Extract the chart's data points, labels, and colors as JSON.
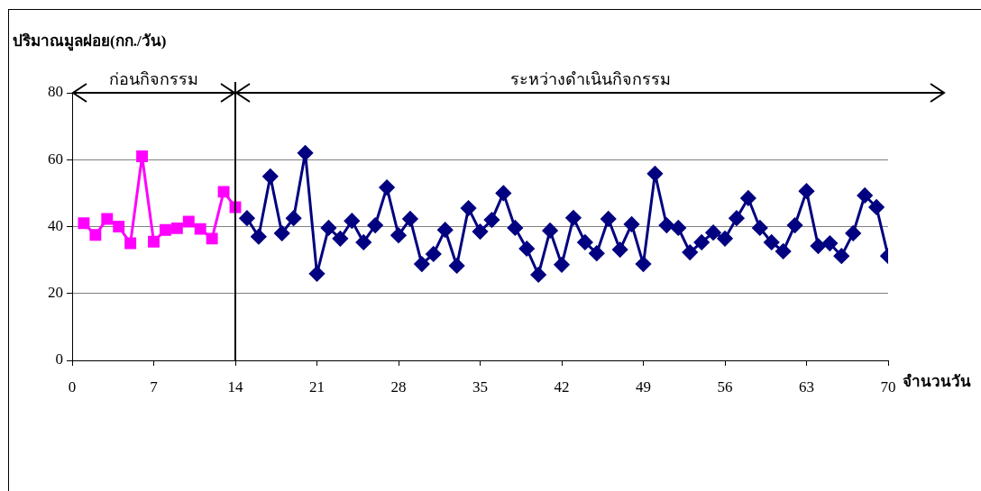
{
  "chart_data": {
    "type": "line",
    "ylabel": "ปริมาณมูลฝอย(กก./วัน)",
    "xlabel": "จำนวนวัน",
    "annotations": [
      "ก่อนกิจกรรม",
      "ระหว่างดำเนินกิจกรรม"
    ],
    "xlim": [
      0,
      70
    ],
    "xticks": [
      0,
      7,
      14,
      21,
      28,
      35,
      42,
      49,
      56,
      63,
      70
    ],
    "ylim": [
      0,
      80
    ],
    "yticks": [
      0,
      20,
      40,
      60,
      80
    ],
    "grid": "y",
    "legend": false,
    "marker": "diamond",
    "ref_lines": [
      {
        "axis": "x",
        "value": 14,
        "color": "#000000"
      }
    ],
    "series": [
      {
        "color": "#ff00ff",
        "marker": "square",
        "x": [
          1,
          2,
          3,
          4,
          5,
          6,
          7,
          8,
          9,
          10,
          11,
          12,
          13,
          14
        ],
        "values": [
          41,
          37.5,
          42.3,
          40,
          35,
          61,
          35.5,
          39,
          39.5,
          41.5,
          39.3,
          36.4,
          50.4,
          45.8
        ]
      },
      {
        "color": "#000080",
        "x": [
          15,
          16,
          17,
          18,
          19,
          20,
          21,
          22,
          23,
          24,
          25,
          26,
          27,
          28,
          29,
          30,
          31,
          32,
          33,
          34,
          35,
          36,
          37,
          38,
          39,
          40,
          41,
          42,
          43,
          44,
          45,
          46,
          47,
          48,
          49,
          50,
          51,
          52,
          53,
          54,
          55,
          56,
          57,
          58,
          59,
          60,
          61,
          62,
          63,
          64,
          65,
          66,
          67,
          68,
          69,
          70
        ],
        "values": [
          42.5,
          37,
          55,
          38,
          42.5,
          62,
          25.9,
          39.6,
          36.4,
          41.7,
          35.3,
          40.4,
          51.7,
          37.4,
          42.3,
          28.8,
          31.8,
          39,
          28.3,
          45.5,
          38.5,
          42,
          50,
          39.6,
          33.4,
          25.6,
          38.8,
          28.6,
          42.6,
          35.3,
          32,
          42.3,
          33.1,
          40.7,
          28.8,
          55.8,
          40.4,
          39.6,
          32.3,
          35.3,
          38.2,
          36.4,
          42.5,
          48.5,
          39.6,
          35.3,
          32.6,
          40.4,
          50.6,
          34.2,
          35,
          31.2,
          38,
          49.3,
          45.8,
          31.2
        ]
      }
    ]
  }
}
